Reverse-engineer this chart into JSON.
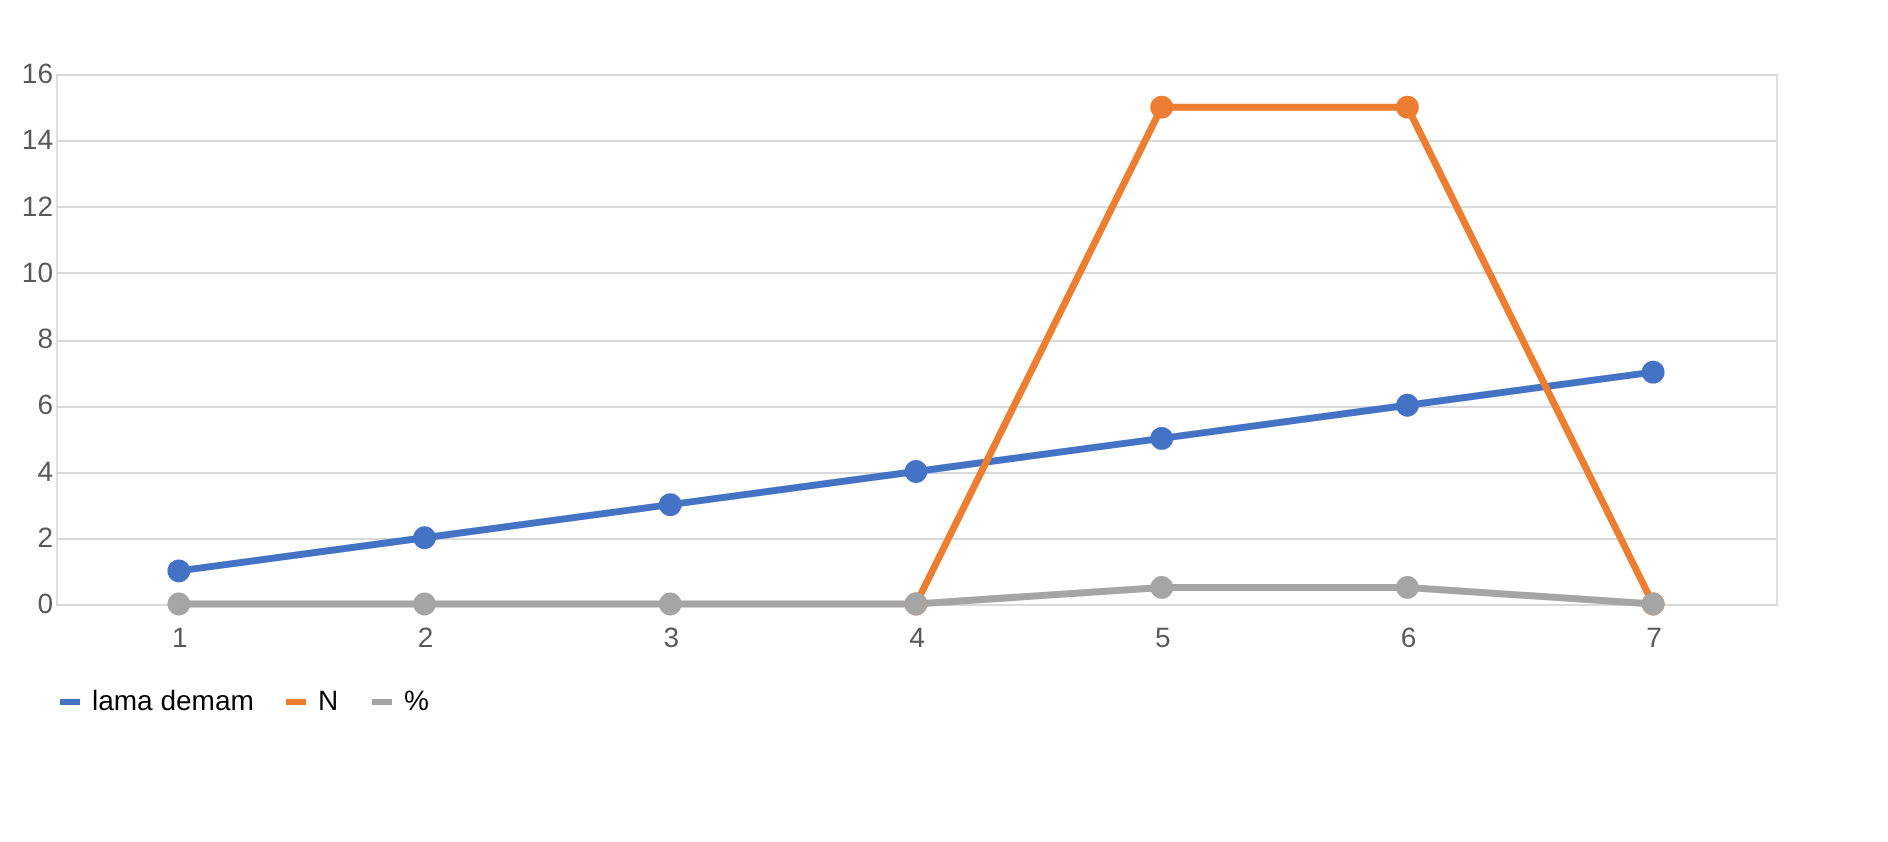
{
  "chart_data": {
    "type": "line",
    "categories": [
      "1",
      "2",
      "3",
      "4",
      "5",
      "6",
      "7"
    ],
    "series": [
      {
        "name": "lama demam",
        "color": "#4472c4",
        "values": [
          1,
          2,
          3,
          4,
          5,
          6,
          7
        ]
      },
      {
        "name": "N",
        "color": "#ed7d31",
        "values": [
          null,
          null,
          null,
          0,
          15,
          15,
          0
        ]
      },
      {
        "name": "%",
        "color": "#a5a5a5",
        "values": [
          0,
          0,
          0,
          0,
          0.5,
          0.5,
          0
        ]
      }
    ],
    "ylim": [
      0,
      16
    ],
    "yticks": [
      0,
      2,
      4,
      6,
      8,
      10,
      12,
      14,
      16
    ],
    "grid": "y",
    "legend": "bottom",
    "marker": "circle",
    "line_style": "solid"
  }
}
